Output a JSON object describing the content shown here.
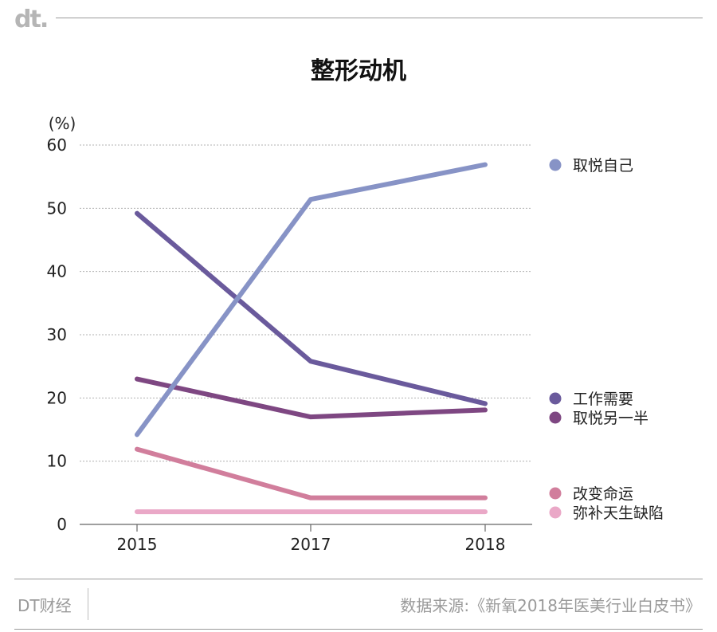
{
  "header": {
    "logo": "dt."
  },
  "chart_data": {
    "type": "line",
    "title": "整形动机",
    "ylabel": "(%)",
    "xlabel": "",
    "x": [
      "2015",
      "2017",
      "2018"
    ],
    "ylim": [
      0,
      60
    ],
    "yticks": [
      0,
      10,
      20,
      30,
      40,
      50,
      60
    ],
    "grid": true,
    "legend_position": "right",
    "series": [
      {
        "name": "取悦自己",
        "color": "#8793c6",
        "values": [
          14.2,
          51.4,
          56.9
        ]
      },
      {
        "name": "工作需要",
        "color": "#6a5a9c",
        "values": [
          49.2,
          25.8,
          19.1
        ]
      },
      {
        "name": "取悦另一半",
        "color": "#7e4782",
        "values": [
          23.0,
          17.0,
          18.1
        ]
      },
      {
        "name": "改变命运",
        "color": "#d17e9c",
        "values": [
          11.9,
          4.2,
          4.2
        ]
      },
      {
        "name": "弥补天生缺陷",
        "color": "#eaa8c7",
        "values": [
          2.0,
          2.0,
          2.0
        ]
      }
    ]
  },
  "footer": {
    "brand": "DT财经",
    "source": "数据来源:《新氧2018年医美行业白皮书》"
  }
}
